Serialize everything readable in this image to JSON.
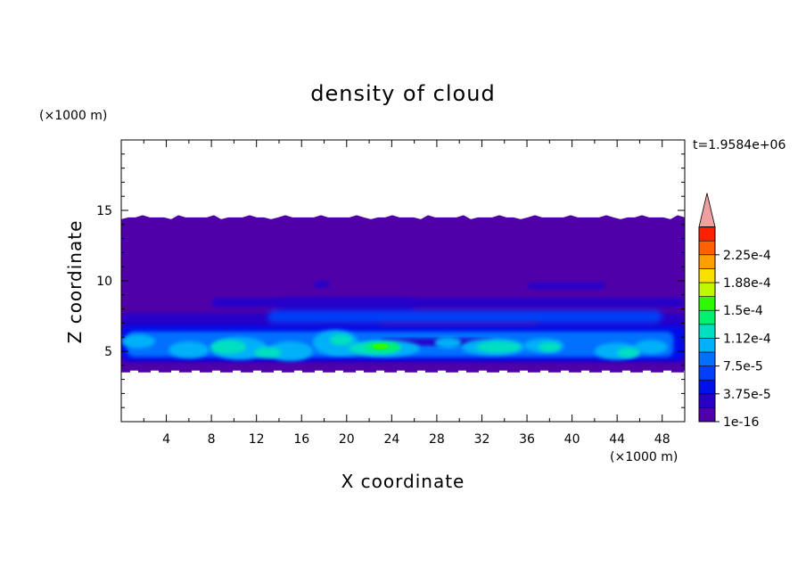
{
  "chart_data": {
    "type": "heatmap",
    "title": "density of cloud",
    "xlabel": "X coordinate",
    "ylabel": "Z coordinate",
    "x_unit": "(×1000 m)",
    "y_unit": "(×1000 m)",
    "time_label": "t=1.9584e+06",
    "xlim": [
      0,
      50
    ],
    "ylim": [
      0,
      20
    ],
    "x_ticks": [
      4,
      8,
      12,
      16,
      20,
      24,
      28,
      32,
      36,
      40,
      44,
      48
    ],
    "y_ticks": [
      5,
      10,
      15
    ],
    "colorbar": {
      "labels": [
        "1e-16",
        "3.75e-5",
        "7.5e-5",
        "1.12e-4",
        "1.5e-4",
        "1.88e-4",
        "2.25e-4"
      ],
      "level_values": [
        1e-16,
        1.875e-05,
        3.75e-05,
        5.625e-05,
        7.5e-05,
        9.375e-05,
        0.0001125,
        0.00013125,
        0.00015,
        0.00016875,
        0.0001875,
        0.00020625,
        0.000225,
        0.00024375
      ],
      "colors": [
        "#5000a8",
        "#2800c8",
        "#0010e8",
        "#0040f8",
        "#0070ff",
        "#00b0f8",
        "#00e0c0",
        "#00f070",
        "#30f800",
        "#c0f800",
        "#f8e000",
        "#ffa000",
        "#ff6000",
        "#ff2000"
      ],
      "overflow_color": "#f0a0a0"
    },
    "cloud_layer": {
      "z_bottom": 3.5,
      "z_top": 14.5,
      "dense_band_z": [
        4.2,
        7.5
      ],
      "peak_region": {
        "x": [
          21,
          26
        ],
        "z": [
          4.8,
          5.8
        ]
      }
    }
  }
}
